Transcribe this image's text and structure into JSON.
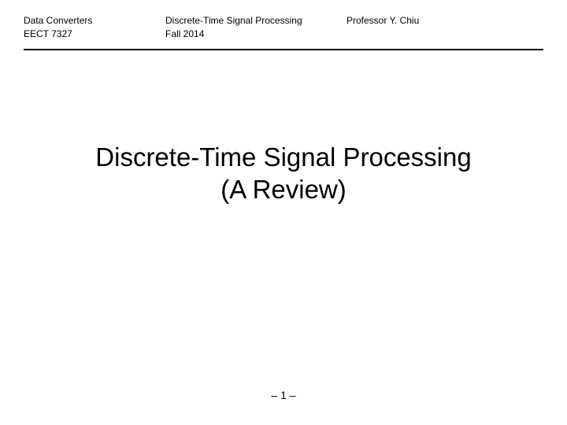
{
  "header": {
    "course_title": "Data Converters",
    "course_code": "EECT 7327",
    "topic": "Discrete-Time Signal Processing",
    "term": "Fall 2014",
    "instructor": "Professor Y. Chiu"
  },
  "main": {
    "title_line1": "Discrete-Time Signal Processing",
    "title_line2": "(A Review)"
  },
  "footer": {
    "page_number": "– 1 –"
  },
  "style": {
    "background_color": "#ffffff",
    "text_color": "#000000",
    "header_fontsize": 12,
    "title_fontsize": 33,
    "page_number_fontsize": 14,
    "rule_color": "#000000",
    "rule_width": 2
  }
}
